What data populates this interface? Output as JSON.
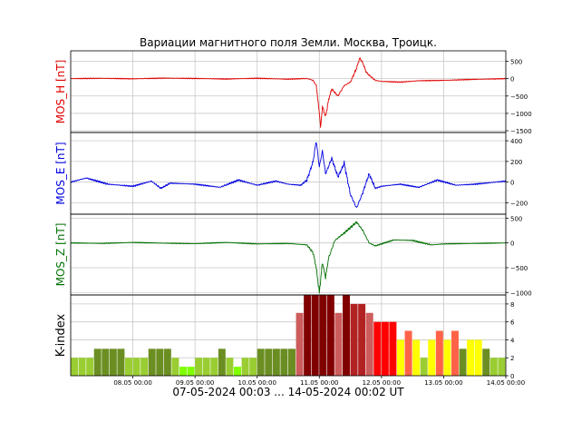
{
  "chart_data": {
    "type": "line",
    "title": "Вариации магнитного поля Земли. Москва, Троицк.",
    "xlabel": "07-05-2024 00:03 ... 14-05-2024 00:02 UT",
    "x_range_days": [
      0,
      7
    ],
    "x_ticks": [
      "08.05 00:00",
      "09.05 00:00",
      "10.05 00:00",
      "11.05 00:00",
      "12.05 00:00",
      "13.05 00:00",
      "14.05 00:00"
    ],
    "panels": [
      {
        "name": "MOS_H",
        "ylabel": "MOS_H [nT]",
        "color": "#e00000",
        "ylim": [
          -1550,
          800
        ],
        "yticks": [
          500,
          0,
          -500,
          -1000,
          -1500
        ],
        "ytick_labels": [
          "500",
          "0",
          "−500",
          "−1000",
          "−1500"
        ],
        "points": [
          [
            0,
            0
          ],
          [
            0.5,
            10
          ],
          [
            1,
            -5
          ],
          [
            1.5,
            15
          ],
          [
            2,
            5
          ],
          [
            2.5,
            -10
          ],
          [
            3,
            10
          ],
          [
            3.5,
            -15
          ],
          [
            3.8,
            5
          ],
          [
            3.9,
            -50
          ],
          [
            3.95,
            -200
          ],
          [
            3.98,
            -650
          ],
          [
            4.0,
            -1000
          ],
          [
            4.02,
            -1380
          ],
          [
            4.05,
            -800
          ],
          [
            4.1,
            -1100
          ],
          [
            4.15,
            -600
          ],
          [
            4.2,
            -300
          ],
          [
            4.3,
            -500
          ],
          [
            4.4,
            -200
          ],
          [
            4.5,
            -100
          ],
          [
            4.6,
            300
          ],
          [
            4.65,
            600
          ],
          [
            4.7,
            450
          ],
          [
            4.75,
            200
          ],
          [
            4.8,
            100
          ],
          [
            4.9,
            -50
          ],
          [
            5.0,
            -80
          ],
          [
            5.3,
            -100
          ],
          [
            5.6,
            -60
          ],
          [
            6.0,
            -50
          ],
          [
            6.5,
            -20
          ],
          [
            7.0,
            0
          ]
        ]
      },
      {
        "name": "MOS_E",
        "ylabel": "MOS_E [nT]",
        "color": "#0000e0",
        "ylim": [
          -310,
          480
        ],
        "yticks": [
          400,
          200,
          0,
          -200
        ],
        "ytick_labels": [
          "400",
          "200",
          "0",
          "−200"
        ],
        "points": [
          [
            0,
            0
          ],
          [
            0.25,
            40
          ],
          [
            0.6,
            -20
          ],
          [
            1.0,
            -40
          ],
          [
            1.3,
            10
          ],
          [
            1.45,
            -60
          ],
          [
            1.6,
            -10
          ],
          [
            2.0,
            -20
          ],
          [
            2.4,
            -50
          ],
          [
            2.7,
            20
          ],
          [
            3.0,
            -30
          ],
          [
            3.3,
            10
          ],
          [
            3.5,
            -20
          ],
          [
            3.7,
            -30
          ],
          [
            3.8,
            20
          ],
          [
            3.9,
            200
          ],
          [
            3.95,
            400
          ],
          [
            4.0,
            150
          ],
          [
            4.05,
            300
          ],
          [
            4.1,
            80
          ],
          [
            4.2,
            230
          ],
          [
            4.3,
            50
          ],
          [
            4.4,
            180
          ],
          [
            4.5,
            -120
          ],
          [
            4.6,
            -250
          ],
          [
            4.7,
            -100
          ],
          [
            4.8,
            80
          ],
          [
            4.9,
            -60
          ],
          [
            5.0,
            -40
          ],
          [
            5.3,
            -20
          ],
          [
            5.6,
            -50
          ],
          [
            5.9,
            20
          ],
          [
            6.2,
            -30
          ],
          [
            6.5,
            -20
          ],
          [
            7.0,
            10
          ]
        ]
      },
      {
        "name": "MOS_Z",
        "ylabel": "MOS_Z [nT]",
        "color": "#007000",
        "ylim": [
          -1050,
          580
        ],
        "yticks": [
          500,
          0,
          -500,
          -1000
        ],
        "ytick_labels": [
          "500",
          "0",
          "−500",
          "−1000"
        ],
        "points": [
          [
            0,
            0
          ],
          [
            0.5,
            -10
          ],
          [
            1,
            10
          ],
          [
            1.5,
            -5
          ],
          [
            2,
            -15
          ],
          [
            2.5,
            10
          ],
          [
            3,
            -20
          ],
          [
            3.5,
            -10
          ],
          [
            3.8,
            -40
          ],
          [
            3.9,
            -200
          ],
          [
            3.95,
            -500
          ],
          [
            4.0,
            -1000
          ],
          [
            4.05,
            -400
          ],
          [
            4.1,
            -700
          ],
          [
            4.15,
            -300
          ],
          [
            4.25,
            50
          ],
          [
            4.4,
            200
          ],
          [
            4.6,
            420
          ],
          [
            4.7,
            250
          ],
          [
            4.8,
            0
          ],
          [
            4.9,
            -60
          ],
          [
            5.0,
            -20
          ],
          [
            5.2,
            60
          ],
          [
            5.5,
            50
          ],
          [
            5.8,
            -40
          ],
          [
            6.0,
            -20
          ],
          [
            6.5,
            -10
          ],
          [
            7.0,
            0
          ]
        ]
      },
      {
        "name": "K-index",
        "ylabel": "K-index",
        "type": "bar",
        "ylim": [
          0,
          9
        ],
        "yticks": [
          0,
          2,
          4,
          6,
          8
        ],
        "ytick_labels": [
          "0",
          "2",
          "4",
          "6",
          "8"
        ],
        "bar_width_days": 0.125,
        "values": [
          2,
          2,
          2,
          3,
          3,
          3,
          3,
          2,
          2,
          2,
          3,
          3,
          3,
          2,
          1,
          1,
          2,
          2,
          2,
          3,
          2,
          1,
          2,
          2,
          3,
          3,
          3,
          3,
          3,
          7,
          9,
          9,
          9,
          9,
          7,
          9,
          8,
          8,
          7,
          6,
          6,
          6,
          4,
          5,
          4,
          2,
          4,
          5,
          4,
          5,
          3,
          4,
          4,
          3,
          2,
          2
        ]
      }
    ]
  }
}
